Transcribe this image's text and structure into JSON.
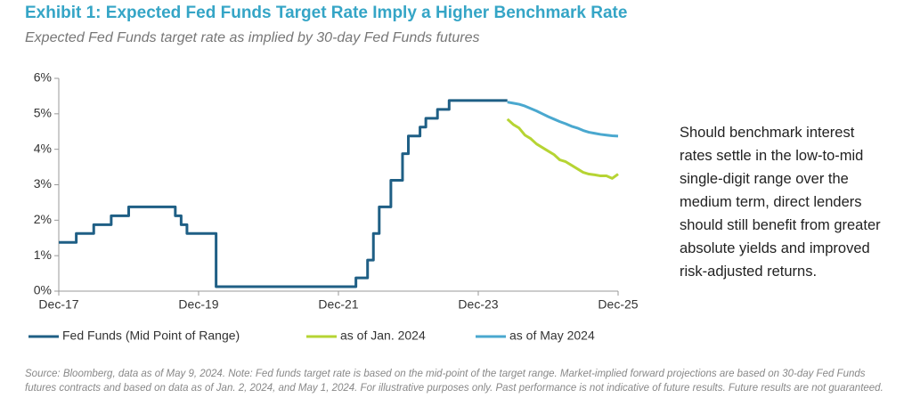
{
  "chart_data": {
    "type": "line",
    "title": "Exhibit 1: Expected Fed Funds Target Rate Imply a Higher Benchmark Rate",
    "subtitle": "Expected Fed Funds target rate as implied by 30-day Fed Funds futures",
    "annotation": "Should benchmark interest rates settle in the low-to-mid single-digit range over the medium term, direct lenders should still benefit from greater absolute yields and improved risk-adjusted returns.",
    "source": "Source: Bloomberg, data as of May 9, 2024. Note: Fed funds target rate is based on the mid-point of the target range. Market-implied forward projections are based on 30-day Fed Funds futures contracts and based on data as of Jan. 2, 2024, and May 1, 2024. For illustrative purposes only. Past performance is not indicative of future results. Future results are not guaranteed.",
    "xlim": [
      "2017-12",
      "2025-12"
    ],
    "xticks": [
      {
        "value": "2017-12",
        "label": "Dec-17"
      },
      {
        "value": "2019-12",
        "label": "Dec-19"
      },
      {
        "value": "2021-12",
        "label": "Dec-21"
      },
      {
        "value": "2023-12",
        "label": "Dec-23"
      },
      {
        "value": "2025-12",
        "label": "Dec-25"
      }
    ],
    "ylim": [
      0,
      6
    ],
    "yticks": [
      {
        "value": 0,
        "label": "0%"
      },
      {
        "value": 1,
        "label": "1%"
      },
      {
        "value": 2,
        "label": "2%"
      },
      {
        "value": 3,
        "label": "3%"
      },
      {
        "value": 4,
        "label": "4%"
      },
      {
        "value": 5,
        "label": "5%"
      },
      {
        "value": 6,
        "label": "6%"
      }
    ],
    "series": [
      {
        "name": "Fed Funds (Mid Point of Range)",
        "color": "#1f5f85",
        "step": true,
        "x": [
          "2017-12",
          "2018-03",
          "2018-06",
          "2018-09",
          "2018-12",
          "2019-08",
          "2019-09",
          "2019-10",
          "2020-03",
          "2022-03",
          "2022-05",
          "2022-06",
          "2022-07",
          "2022-09",
          "2022-11",
          "2022-12",
          "2023-02",
          "2023-03",
          "2023-05",
          "2023-07",
          "2024-05"
        ],
        "values": [
          1.375,
          1.625,
          1.875,
          2.125,
          2.375,
          2.125,
          1.875,
          1.625,
          0.125,
          0.375,
          0.875,
          1.625,
          2.375,
          3.125,
          3.875,
          4.375,
          4.625,
          4.875,
          5.125,
          5.375,
          5.375
        ]
      },
      {
        "name": "as of Jan. 2024",
        "color": "#b6d433",
        "step": false,
        "x": [
          "2024-05",
          "2024-06",
          "2024-07",
          "2024-08",
          "2024-09",
          "2024-10",
          "2024-11",
          "2024-12",
          "2025-01",
          "2025-02",
          "2025-03",
          "2025-04",
          "2025-05",
          "2025-06",
          "2025-07",
          "2025-08",
          "2025-09",
          "2025-10",
          "2025-11",
          "2025-12"
        ],
        "values": [
          4.85,
          4.7,
          4.6,
          4.4,
          4.3,
          4.15,
          4.05,
          3.95,
          3.85,
          3.7,
          3.65,
          3.55,
          3.45,
          3.35,
          3.3,
          3.28,
          3.25,
          3.25,
          3.18,
          3.3
        ]
      },
      {
        "name": "as of May 2024",
        "color": "#4aa8cf",
        "step": false,
        "x": [
          "2024-05",
          "2024-06",
          "2024-07",
          "2024-08",
          "2024-09",
          "2024-10",
          "2024-11",
          "2024-12",
          "2025-01",
          "2025-02",
          "2025-03",
          "2025-04",
          "2025-05",
          "2025-06",
          "2025-07",
          "2025-08",
          "2025-09",
          "2025-10",
          "2025-11",
          "2025-12"
        ],
        "values": [
          5.33,
          5.3,
          5.27,
          5.22,
          5.15,
          5.08,
          5.0,
          4.92,
          4.85,
          4.78,
          4.72,
          4.65,
          4.6,
          4.53,
          4.48,
          4.45,
          4.42,
          4.4,
          4.38,
          4.37
        ]
      }
    ]
  }
}
